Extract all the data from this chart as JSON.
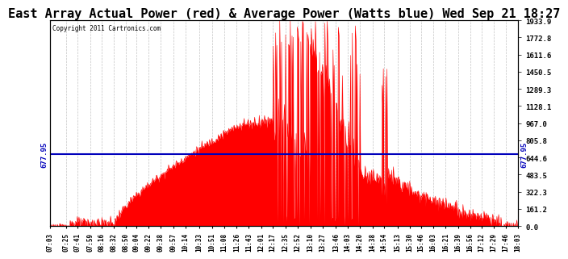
{
  "title": "East Array Actual Power (red) & Average Power (Watts blue) Wed Sep 21 18:27",
  "copyright": "Copyright 2011 Cartronics.com",
  "ymax": 1933.9,
  "ymin": 0.0,
  "yticks": [
    0.0,
    161.2,
    322.3,
    483.5,
    644.6,
    805.8,
    967.0,
    1128.1,
    1289.3,
    1450.5,
    1611.6,
    1772.8,
    1933.9
  ],
  "average_power": 677.95,
  "fill_color": "#ff0000",
  "line_color": "#ff0000",
  "avg_line_color": "#0000bb",
  "background_color": "#ffffff",
  "grid_color": "#aaaaaa",
  "title_fontsize": 11,
  "xtick_labels": [
    "07:03",
    "07:25",
    "07:41",
    "07:59",
    "08:16",
    "08:32",
    "08:50",
    "09:04",
    "09:22",
    "09:38",
    "09:57",
    "10:14",
    "10:33",
    "10:51",
    "11:08",
    "11:26",
    "11:43",
    "12:01",
    "12:17",
    "12:35",
    "12:52",
    "13:10",
    "13:27",
    "13:46",
    "14:03",
    "14:20",
    "14:38",
    "14:54",
    "15:13",
    "15:30",
    "15:46",
    "16:03",
    "16:21",
    "16:39",
    "16:56",
    "17:12",
    "17:29",
    "17:46",
    "18:03"
  ]
}
